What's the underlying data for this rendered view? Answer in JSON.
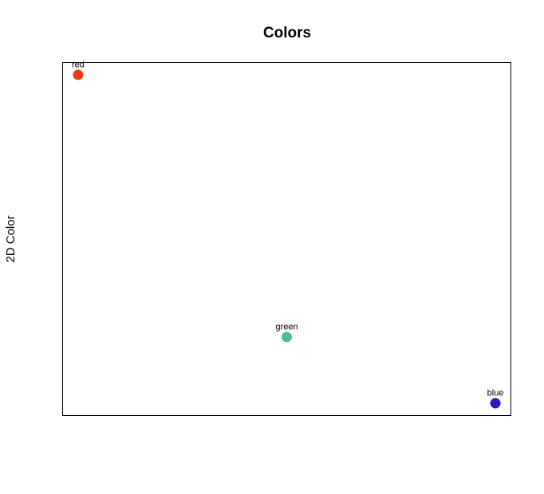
{
  "chart_data": {
    "type": "scatter",
    "title": "Colors",
    "xlabel": "",
    "ylabel": "2D Color",
    "xlim": [
      -0.0362,
      1.0362
    ],
    "ylim": [
      -0.0362,
      1.0362
    ],
    "grid": false,
    "legend": false,
    "axes_ticks": false,
    "points": [
      {
        "label": "red",
        "x": 0.0,
        "y": 1.0,
        "color": "#f03c1e"
      },
      {
        "label": "green",
        "x": 0.5,
        "y": 0.2016,
        "color": "#4fbf87"
      },
      {
        "label": "blue",
        "x": 1.0,
        "y": 0.0,
        "color": "#2a18c4"
      }
    ]
  }
}
